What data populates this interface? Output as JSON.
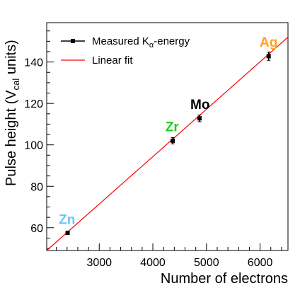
{
  "chart_data": {
    "type": "scatter",
    "xlabel": "Number of electrons",
    "ylabel": {
      "main": "Pulse height (V",
      "sub": "cal",
      "tail": " units)"
    },
    "xlim": [
      2020,
      6520
    ],
    "ylim": [
      49,
      159
    ],
    "x_ticks": [
      3000,
      4000,
      5000,
      6000
    ],
    "y_ticks": [
      60,
      80,
      100,
      120,
      140
    ],
    "x_minor_step": 200,
    "y_minor_step": 5,
    "grid": false,
    "legend": {
      "placement": "top-left",
      "entries": [
        {
          "key": "measured",
          "label_main": "Measured K",
          "label_sub": "α",
          "label_tail": "-energy",
          "color": "#000000"
        },
        {
          "key": "fit",
          "label": "Linear fit",
          "color": "#ff0000"
        }
      ]
    },
    "series": [
      {
        "key": "measured",
        "type": "scatter",
        "color": "#000000",
        "points": [
          {
            "x": 2410,
            "y": 57.5,
            "yerr": 0.8
          },
          {
            "x": 4370,
            "y": 102.0,
            "yerr": 1.5
          },
          {
            "x": 4870,
            "y": 112.8,
            "yerr": 1.6
          },
          {
            "x": 6160,
            "y": 142.8,
            "yerr": 2.0
          }
        ]
      },
      {
        "key": "fit",
        "type": "line",
        "color": "#ff0000",
        "points": [
          {
            "x": 2020,
            "y": 49.0
          },
          {
            "x": 6520,
            "y": 152.0
          }
        ]
      }
    ],
    "annotations": [
      {
        "key": "zn",
        "text": "Zn",
        "x": 2400,
        "y": 61.8,
        "color": "#6ec5f5"
      },
      {
        "key": "zr",
        "text": "Zr",
        "x": 4360,
        "y": 106.6,
        "color": "#22cc22"
      },
      {
        "key": "mo",
        "text": "Mo",
        "x": 4880,
        "y": 117.4,
        "color": "#000000"
      },
      {
        "key": "ag",
        "text": "Ag",
        "x": 6160,
        "y": 147.4,
        "color": "#ffa020"
      }
    ]
  }
}
